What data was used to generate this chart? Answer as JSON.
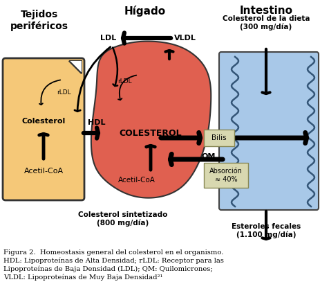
{
  "bg_color": "#ffffff",
  "tejido_color": "#F5C878",
  "tejido_edge": "#333333",
  "higado_color": "#E06050",
  "intestino_color": "#A8C8E8",
  "intestino_edge": "#444444",
  "wavy_color": "#335577",
  "arrow_color": "#111111",
  "bilis_box_color": "#D8D8B0",
  "absorcion_box_color": "#D8D8B0",
  "caption_fontsize": 7.2,
  "tejidos_title": "Tejidos\nperiféricos",
  "higado_title": "Hígado",
  "intestino_title": "Intestino"
}
